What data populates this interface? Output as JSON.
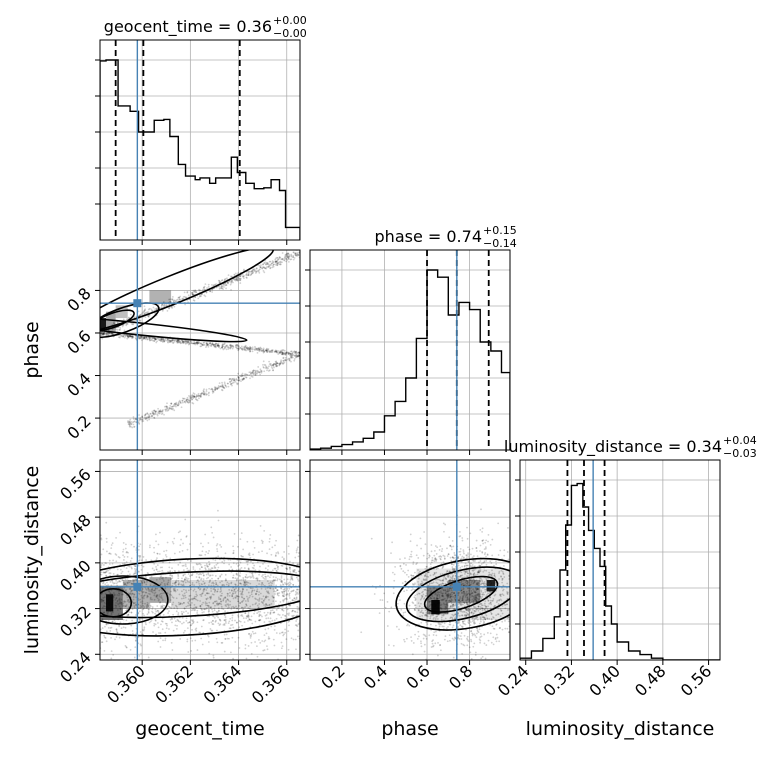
{
  "chart_data": {
    "type": "corner",
    "parameters": [
      "geocent_time",
      "phase",
      "luminosity_distance"
    ],
    "truth": {
      "geocent_time": 0.3598,
      "phase": 0.74,
      "luminosity_distance": 0.358
    },
    "colors": {
      "truth": "#4682b4",
      "hist": "#000000",
      "contour": "#000000"
    },
    "titles": [
      {
        "param": "geocent_time",
        "label": "geocent_time = 0.36",
        "plus": "+0.00",
        "minus": "−0.00"
      },
      {
        "param": "phase",
        "label": "phase = 0.74",
        "plus": "+0.15",
        "minus": "−0.14"
      },
      {
        "param": "luminosity_distance",
        "label": "luminosity_distance = 0.34",
        "plus": "+0.04",
        "minus": "−0.03"
      }
    ],
    "ranges": {
      "geocent_time": [
        0.35825,
        0.36655
      ],
      "phase": [
        0.05,
        0.99
      ],
      "luminosity_distance": [
        0.23,
        0.58
      ]
    },
    "ticks": {
      "geocent_time": [
        "0.360",
        "0.362",
        "0.364",
        "0.366"
      ],
      "phase": [
        "0.2",
        "0.4",
        "0.6",
        "0.8"
      ],
      "luminosity_distance": [
        "0.24",
        "0.32",
        "0.40",
        "0.48",
        "0.56"
      ]
    },
    "quantiles": {
      "geocent_time": [
        0.3589,
        0.36005,
        0.36405
      ],
      "phase": [
        0.6,
        0.74,
        0.89
      ],
      "luminosity_distance": [
        0.313,
        0.342,
        0.378
      ]
    },
    "histograms": {
      "geocent_time": {
        "edges": [
          0.35825,
          0.3585,
          0.359,
          0.3595,
          0.35985,
          0.3603,
          0.3605,
          0.3609,
          0.36115,
          0.3615,
          0.3618,
          0.3622,
          0.3624,
          0.3628,
          0.36305,
          0.3637,
          0.36395,
          0.3643,
          0.36465,
          0.36505,
          0.36535,
          0.3657,
          0.36595,
          0.36655
        ],
        "counts": [
          0.995,
          1.0,
          0.745,
          0.715,
          0.6,
          0.6,
          0.665,
          0.67,
          0.575,
          0.42,
          0.355,
          0.335,
          0.345,
          0.315,
          0.345,
          0.46,
          0.375,
          0.315,
          0.285,
          0.29,
          0.335,
          0.275,
          0.07
        ]
      },
      "phase": {
        "edges": [
          0.05,
          0.1,
          0.15,
          0.2,
          0.25,
          0.3,
          0.35,
          0.4,
          0.45,
          0.5,
          0.55,
          0.6,
          0.65,
          0.7,
          0.75,
          0.8,
          0.85,
          0.9,
          0.95,
          0.99
        ],
        "counts": [
          0.005,
          0.01,
          0.02,
          0.03,
          0.045,
          0.065,
          0.1,
          0.19,
          0.27,
          0.4,
          0.62,
          1.0,
          0.96,
          0.75,
          0.82,
          0.78,
          0.6,
          0.55,
          0.43
        ]
      },
      "luminosity_distance": {
        "edges": [
          0.23,
          0.25,
          0.27,
          0.29,
          0.3,
          0.31,
          0.32,
          0.33,
          0.34,
          0.35,
          0.36,
          0.37,
          0.38,
          0.39,
          0.4,
          0.42,
          0.44,
          0.46,
          0.48,
          0.58
        ],
        "counts": [
          0.01,
          0.05,
          0.12,
          0.24,
          0.5,
          0.75,
          0.97,
          0.98,
          0.85,
          0.72,
          0.62,
          0.52,
          0.3,
          0.2,
          0.1,
          0.05,
          0.03,
          0.01,
          0.0
        ]
      }
    },
    "scatter_notes": "2D panels: posterior sample cloud (grey points), 2D histogram shading and 3 density contours"
  },
  "axes": {
    "xlabels": [
      "geocent_time",
      "phase",
      "luminosity_distance"
    ],
    "ylabels": [
      "phase",
      "luminosity_distance"
    ]
  }
}
